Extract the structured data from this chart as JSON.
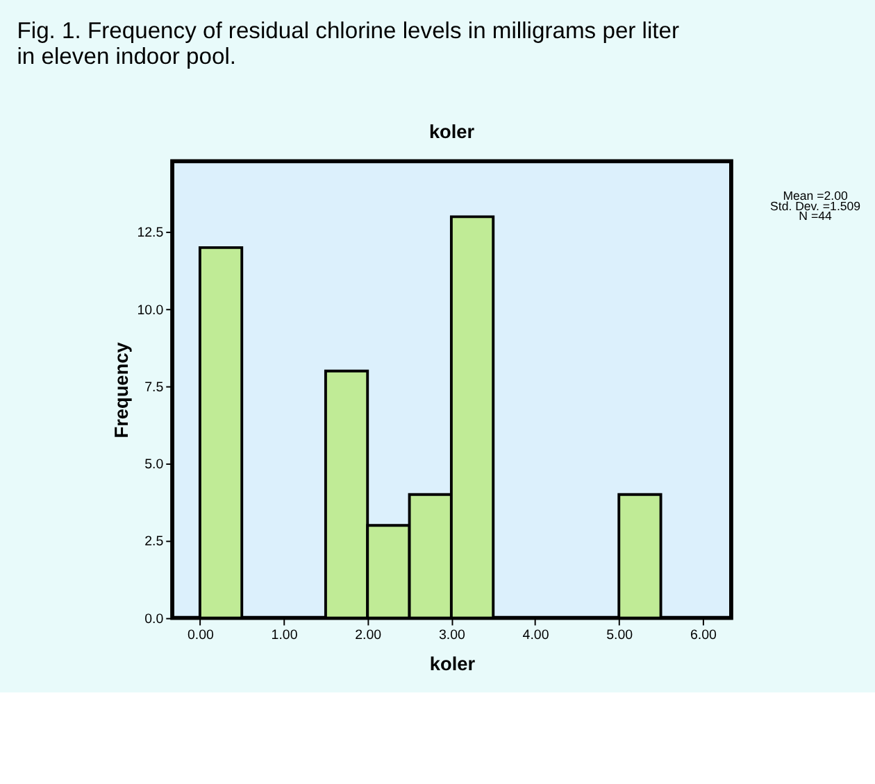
{
  "chart_data": {
    "type": "histogram",
    "title": "Fig. 1. Frequency of residual chlorine levels in milligrams per liter in eleven indoor pool.",
    "subtitle": "koler",
    "xlabel": "koler",
    "ylabel": "Frequency",
    "bins": [
      0,
      0.5,
      1,
      1.5,
      2,
      2.5,
      3,
      3.5,
      4,
      4.5,
      5,
      5.5
    ],
    "values": [
      12,
      0,
      0,
      8,
      3,
      4,
      13,
      0,
      0,
      0,
      4
    ],
    "color": "#c0eb96",
    "xlim": [
      -0.33,
      6.34
    ],
    "ylim": [
      0,
      14.8
    ],
    "xticks": [
      {
        "value": 0,
        "label": "0.00"
      },
      {
        "value": 1,
        "label": "1.00"
      },
      {
        "value": 2,
        "label": "2.00"
      },
      {
        "value": 3,
        "label": "3.00"
      },
      {
        "value": 4,
        "label": "4.00"
      },
      {
        "value": 5,
        "label": "5.00"
      },
      {
        "value": 6,
        "label": "6.00"
      }
    ],
    "yticks": [
      {
        "value": 0,
        "label": "0.0"
      },
      2.5,
      {
        "value": 5,
        "label": "5.0"
      },
      7.5,
      {
        "value": 10,
        "label": "10.0"
      },
      12.5
    ],
    "grid": false,
    "annotations": [
      "Mean =2.00",
      "Std. Dev. =1.509",
      "N =44"
    ]
  }
}
